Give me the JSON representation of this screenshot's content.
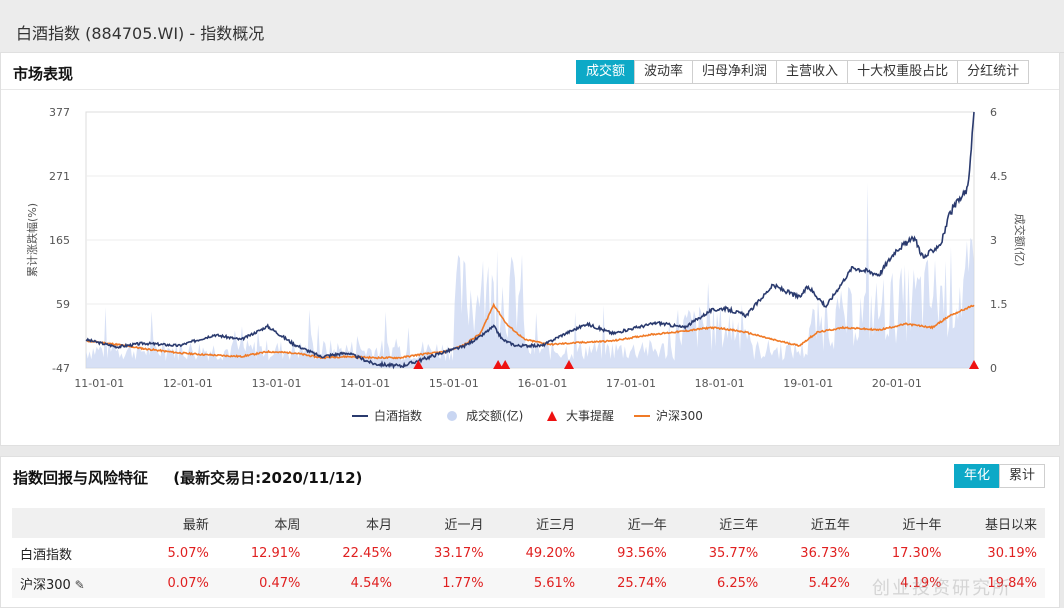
{
  "header": {
    "title": "白酒指数 (884705.WI) - 指数概况"
  },
  "market": {
    "title": "市场表现",
    "tabs": [
      "成交额",
      "波动率",
      "归母净利润",
      "主营收入",
      "十大权重股占比",
      "分红统计"
    ],
    "active_tab": "成交额"
  },
  "chart_data": {
    "type": "line",
    "x_ticks": [
      "11-01-01",
      "12-01-01",
      "13-01-01",
      "14-01-01",
      "15-01-01",
      "16-01-01",
      "17-01-01",
      "18-01-01",
      "19-01-01",
      "20-01-01"
    ],
    "y_left": {
      "label": "累计涨跌幅(%)",
      "ticks": [
        "377",
        "271",
        "165",
        "59",
        "-47"
      ],
      "range": [
        -47,
        377
      ]
    },
    "y_right": {
      "label": "成交额(亿)",
      "ticks": [
        "6",
        "4.5",
        "3",
        "1.5",
        "0"
      ],
      "range": [
        0,
        6
      ]
    },
    "legend": [
      "白酒指数",
      "成交额(亿)",
      "大事提醒",
      "沪深300"
    ],
    "colors": {
      "baijiu": "#2a3a6e",
      "volume": "#c9d6f2",
      "event": "#ee1111",
      "hs300": "#f07a26"
    },
    "series": [
      {
        "name": "白酒指数",
        "x": [
          2010.85,
          2011.2,
          2011.5,
          2011.9,
          2012.3,
          2012.6,
          2012.9,
          2013.2,
          2013.5,
          2013.8,
          2014.1,
          2014.4,
          2014.6,
          2014.9,
          2015.1,
          2015.3,
          2015.45,
          2015.55,
          2015.7,
          2016.0,
          2016.2,
          2016.5,
          2016.8,
          2017.0,
          2017.3,
          2017.6,
          2017.9,
          2018.05,
          2018.3,
          2018.6,
          2018.9,
          2019.0,
          2019.2,
          2019.5,
          2019.8,
          2020.0,
          2020.2,
          2020.3,
          2020.5,
          2020.6,
          2020.8,
          2020.87
        ],
        "y": [
          0,
          -12,
          -6,
          -10,
          8,
          0,
          22,
          -8,
          -28,
          -22,
          -40,
          -44,
          -35,
          -20,
          -12,
          5,
          22,
          0,
          -10,
          -10,
          6,
          26,
          10,
          18,
          28,
          20,
          48,
          52,
          40,
          90,
          70,
          88,
          55,
          120,
          108,
          150,
          168,
          135,
          160,
          210,
          250,
          377
        ]
      },
      {
        "name": "沪深300",
        "x": [
          2010.85,
          2011.2,
          2011.5,
          2011.9,
          2012.2,
          2012.6,
          2012.9,
          2013.2,
          2013.5,
          2013.8,
          2014.1,
          2014.4,
          2014.6,
          2014.9,
          2015.1,
          2015.3,
          2015.45,
          2015.6,
          2015.8,
          2016.1,
          2016.4,
          2016.8,
          2017.2,
          2017.6,
          2017.9,
          2018.05,
          2018.3,
          2018.6,
          2018.9,
          2019.1,
          2019.4,
          2019.8,
          2020.1,
          2020.4,
          2020.6,
          2020.87
        ],
        "y": [
          -2,
          -8,
          -15,
          -22,
          -25,
          -28,
          -20,
          -22,
          -30,
          -28,
          -30,
          -30,
          -25,
          -20,
          -10,
          10,
          58,
          25,
          0,
          -8,
          -5,
          -2,
          8,
          14,
          20,
          18,
          12,
          0,
          -10,
          12,
          20,
          16,
          26,
          20,
          40,
          57
        ]
      }
    ],
    "events": [
      2014.6,
      2015.5,
      2015.58,
      2016.3,
      2020.87
    ]
  },
  "returns": {
    "title": "指数回报与风险特征",
    "date_label": "(最新交易日:2020/11/12)",
    "toggle": [
      "年化",
      "累计"
    ],
    "active_toggle": "年化",
    "headers": [
      "",
      "最新",
      "本周",
      "本月",
      "近一月",
      "近三月",
      "近一年",
      "近三年",
      "近五年",
      "近十年",
      "基日以来"
    ],
    "rows": [
      {
        "name": "白酒指数",
        "values": [
          "5.07%",
          "12.91%",
          "22.45%",
          "33.17%",
          "49.20%",
          "93.56%",
          "35.77%",
          "36.73%",
          "17.30%",
          "30.19%"
        ]
      },
      {
        "name": "沪深300",
        "values": [
          "0.07%",
          "0.47%",
          "4.54%",
          "1.77%",
          "5.61%",
          "25.74%",
          "6.25%",
          "5.42%",
          "4.19%",
          "19.84%"
        ]
      }
    ]
  },
  "watermark": "创业投资研究所"
}
